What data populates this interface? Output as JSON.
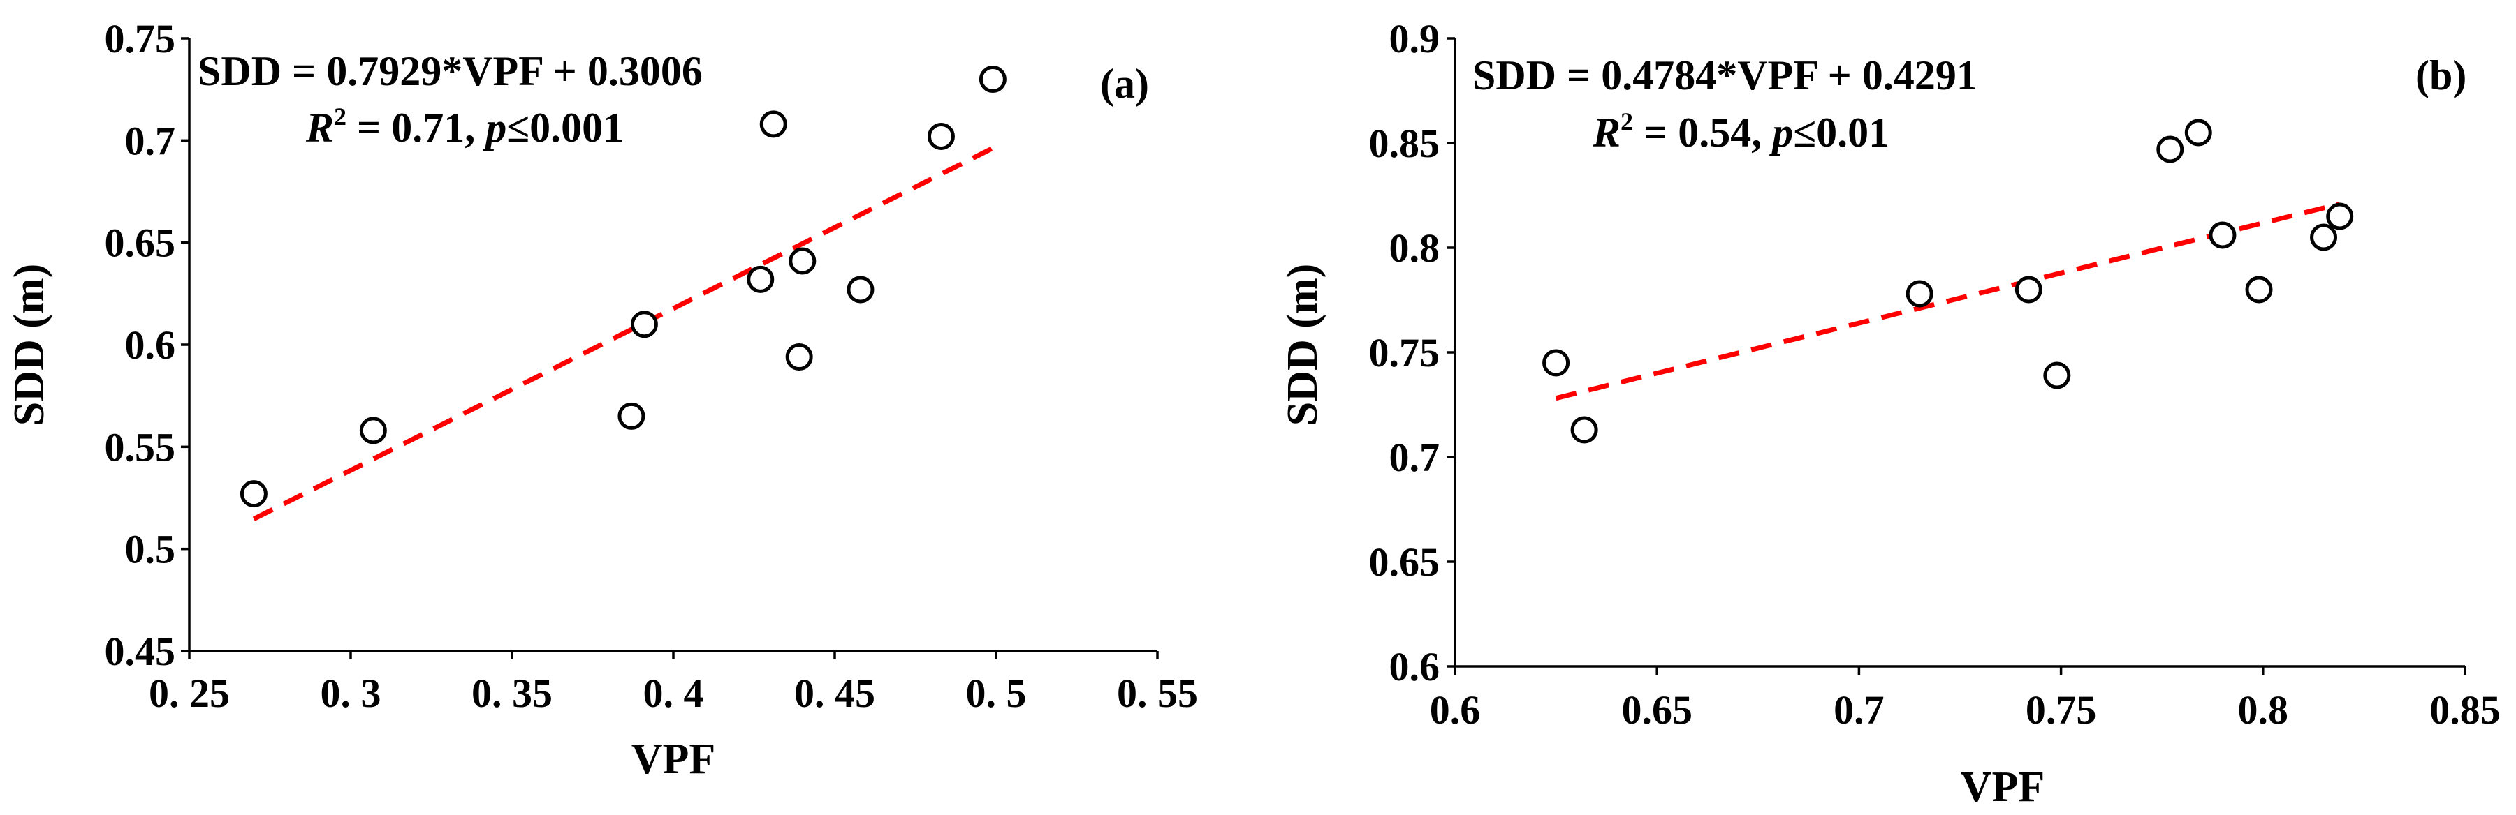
{
  "chart_data": [
    {
      "type": "scatter",
      "panel_label": "(a)",
      "xlabel": "VPF",
      "ylabel": "SDD (m)",
      "xlim": [
        0.25,
        0.55
      ],
      "ylim": [
        0.45,
        0.75
      ],
      "x_ticks": [
        "0. 25",
        "0. 3",
        "0. 35",
        "0. 4",
        "0. 45",
        "0. 5",
        "0. 55"
      ],
      "y_ticks": [
        "0.45",
        "0.5",
        "0.55",
        "0.6",
        "0.65",
        "0.7",
        "0.75"
      ],
      "x_tick_values": [
        0.25,
        0.3,
        0.35,
        0.4,
        0.45,
        0.5,
        0.55
      ],
      "y_tick_values": [
        0.45,
        0.5,
        0.55,
        0.6,
        0.65,
        0.7,
        0.75
      ],
      "points": [
        {
          "x": 0.27,
          "y": 0.527
        },
        {
          "x": 0.307,
          "y": 0.558
        },
        {
          "x": 0.387,
          "y": 0.565
        },
        {
          "x": 0.391,
          "y": 0.61
        },
        {
          "x": 0.427,
          "y": 0.632
        },
        {
          "x": 0.431,
          "y": 0.708
        },
        {
          "x": 0.439,
          "y": 0.594
        },
        {
          "x": 0.44,
          "y": 0.641
        },
        {
          "x": 0.458,
          "y": 0.627
        },
        {
          "x": 0.483,
          "y": 0.702
        },
        {
          "x": 0.499,
          "y": 0.73
        }
      ],
      "trendline": {
        "slope": 0.7929,
        "intercept": 0.3006,
        "x_range": [
          0.27,
          0.499
        ],
        "color": "#ff0000"
      },
      "equation": "SDD = 0.7929*VPF + 0.3006",
      "stats": {
        "r_symbol": "R",
        "r_sup": "2",
        "r2_text": " = 0.71, ",
        "p_symbol": "p",
        "p_text": "≤0.001"
      }
    },
    {
      "type": "scatter",
      "panel_label": "(b)",
      "xlabel": "VPF",
      "ylabel": "SDD (m)",
      "xlim": [
        0.6,
        0.85
      ],
      "ylim": [
        0.6,
        0.9
      ],
      "x_ticks": [
        "0.6",
        "0.65",
        "0.7",
        "0.75",
        "0.8",
        "0.85"
      ],
      "y_ticks": [
        "0.6",
        "0.65",
        "0.7",
        "0.75",
        "0.8",
        "0.85",
        "0.9"
      ],
      "x_tick_values": [
        0.6,
        0.65,
        0.7,
        0.75,
        0.8,
        0.85
      ],
      "y_tick_values": [
        0.6,
        0.65,
        0.7,
        0.75,
        0.8,
        0.85,
        0.9
      ],
      "points": [
        {
          "x": 0.625,
          "y": 0.745
        },
        {
          "x": 0.632,
          "y": 0.713
        },
        {
          "x": 0.715,
          "y": 0.778
        },
        {
          "x": 0.742,
          "y": 0.78
        },
        {
          "x": 0.749,
          "y": 0.739
        },
        {
          "x": 0.777,
          "y": 0.847
        },
        {
          "x": 0.784,
          "y": 0.855
        },
        {
          "x": 0.79,
          "y": 0.806
        },
        {
          "x": 0.799,
          "y": 0.78
        },
        {
          "x": 0.815,
          "y": 0.805
        },
        {
          "x": 0.819,
          "y": 0.815
        }
      ],
      "trendline": {
        "slope": 0.4784,
        "intercept": 0.4291,
        "x_range": [
          0.625,
          0.819
        ],
        "color": "#ff0000"
      },
      "equation": "SDD = 0.4784*VPF + 0.4291",
      "stats": {
        "r_symbol": "R",
        "r_sup": "2",
        "r2_text": " = 0.54, ",
        "p_symbol": "p",
        "p_text": "≤0.01"
      }
    }
  ]
}
